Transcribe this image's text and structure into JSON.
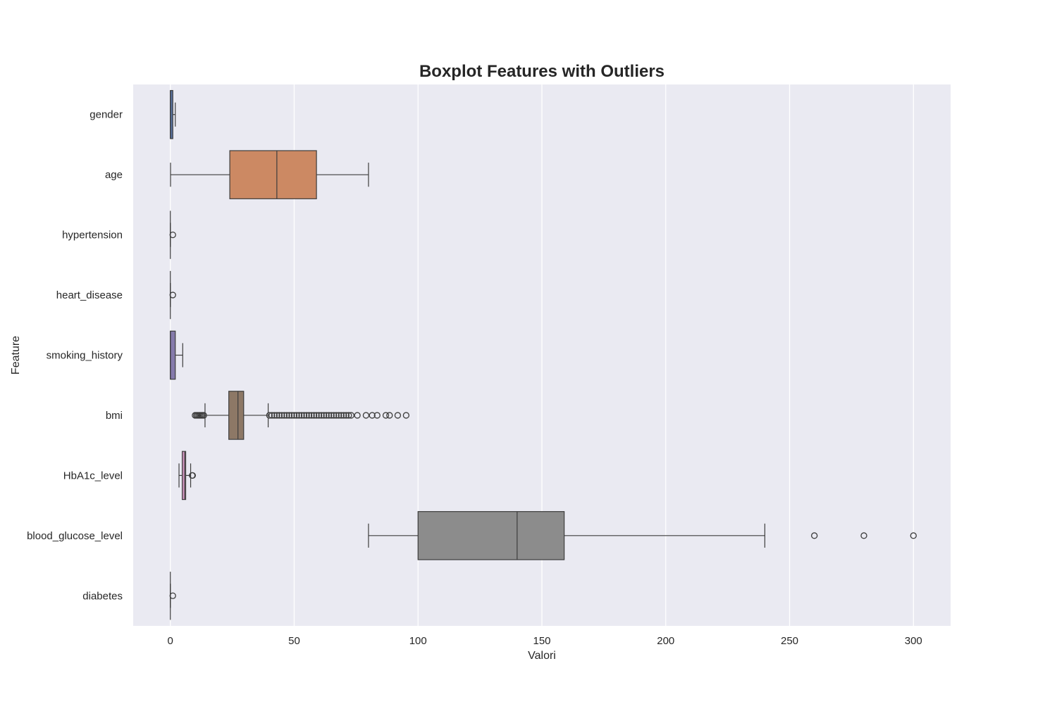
{
  "chart_data": {
    "type": "boxplot",
    "orientation": "horizontal",
    "title": "Boxplot Features with Outliers",
    "xlabel": "Valori",
    "ylabel": "Feature",
    "xlim": [
      -15,
      315
    ],
    "xticks": [
      0,
      50,
      100,
      150,
      200,
      250,
      300
    ],
    "grid": true,
    "colors": {
      "background": "#eaeaf2",
      "grid": "#ffffff",
      "line": "#3d3d3d"
    },
    "series": [
      {
        "name": "gender",
        "color": "#5873a1",
        "whisker_low": 0,
        "q1": 0,
        "median": 0,
        "q3": 1,
        "whisker_high": 2,
        "outliers": []
      },
      {
        "name": "age",
        "color": "#cc8963",
        "whisker_low": 0.08,
        "q1": 24,
        "median": 43,
        "q3": 59,
        "whisker_high": 80,
        "outliers": []
      },
      {
        "name": "hypertension",
        "color": "#5f9e6e",
        "whisker_low": 0,
        "q1": 0,
        "median": 0,
        "q3": 0,
        "whisker_high": 0,
        "outliers": [
          1
        ]
      },
      {
        "name": "heart_disease",
        "color": "#b55d60",
        "whisker_low": 0,
        "q1": 0,
        "median": 0,
        "q3": 0,
        "whisker_high": 0,
        "outliers": [
          1
        ]
      },
      {
        "name": "smoking_history",
        "color": "#857aab",
        "whisker_low": 0,
        "q1": 0,
        "median": 0,
        "q3": 2,
        "whisker_high": 5,
        "outliers": []
      },
      {
        "name": "bmi",
        "color": "#8d7866",
        "whisker_low": 14,
        "q1": 23.6,
        "median": 27.3,
        "q3": 29.6,
        "whisker_high": 39.5,
        "outliers": [
          10,
          10.5,
          11,
          11.5,
          12,
          12.5,
          13,
          13.5,
          40,
          41,
          42,
          43,
          44,
          45,
          46,
          47,
          48,
          49,
          50,
          51,
          52,
          53,
          54,
          55,
          56,
          57,
          58,
          59,
          60,
          61,
          62,
          63,
          64,
          65,
          66,
          67,
          68,
          69,
          70,
          71,
          72,
          73,
          75.5,
          79,
          81.5,
          83.5,
          87,
          88.5,
          91.8,
          95.2
        ]
      },
      {
        "name": "HbA1c_level",
        "color": "#d095bf",
        "whisker_low": 3.5,
        "q1": 4.8,
        "median": 5.8,
        "q3": 6.2,
        "whisker_high": 8.2,
        "outliers": [
          8.8,
          9.0
        ]
      },
      {
        "name": "blood_glucose_level",
        "color": "#8c8c8c",
        "whisker_low": 80,
        "q1": 100,
        "median": 140,
        "q3": 159,
        "whisker_high": 240,
        "outliers": [
          260,
          280,
          300
        ]
      },
      {
        "name": "diabetes",
        "color": "#c4ad66",
        "whisker_low": 0,
        "q1": 0,
        "median": 0,
        "q3": 0,
        "whisker_high": 0,
        "outliers": [
          1
        ]
      }
    ]
  }
}
